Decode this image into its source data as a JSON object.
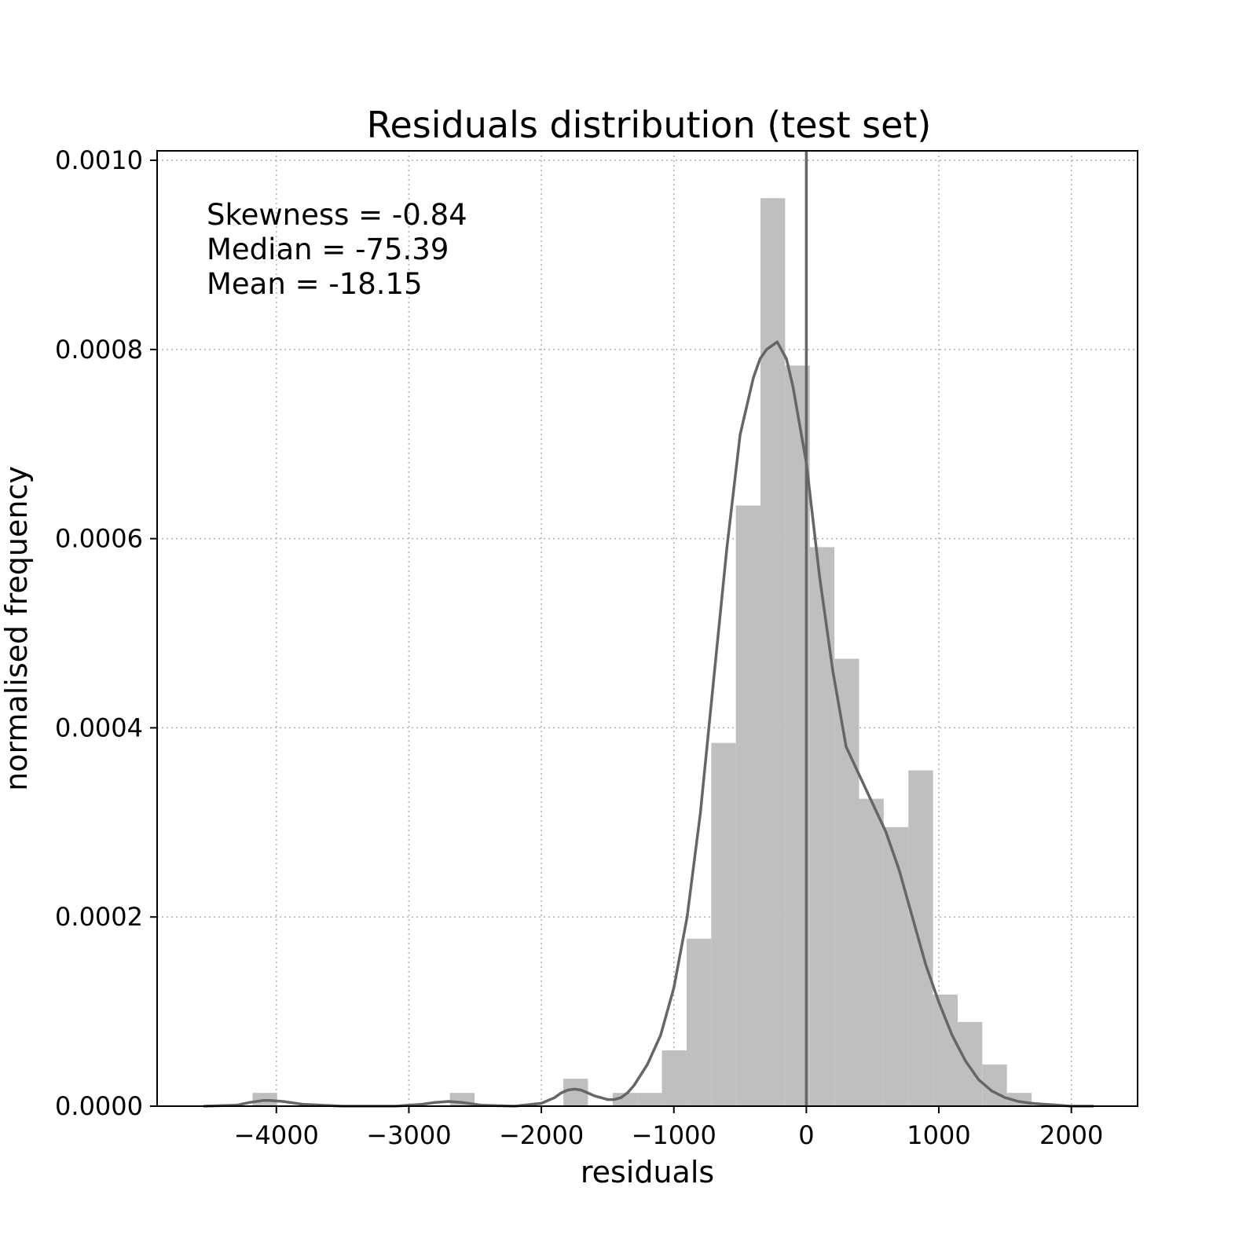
{
  "chart_data": {
    "type": "bar",
    "title": "Residuals distribution (test set)",
    "xlabel": "residuals",
    "ylabel": "normalised frequency",
    "xlim": [
      -4900,
      2500
    ],
    "ylim": [
      0,
      0.00101
    ],
    "xticks": [
      -4000,
      -3000,
      -2000,
      -1000,
      0,
      1000,
      2000
    ],
    "xtick_labels": [
      "−4000",
      "−3000",
      "−2000",
      "−1000",
      "0",
      "1000",
      "2000"
    ],
    "yticks": [
      0,
      0.0002,
      0.0004,
      0.0006,
      0.0008,
      0.001
    ],
    "ytick_labels": [
      "0.0000",
      "0.0002",
      "0.0004",
      "0.0006",
      "0.0008",
      "0.0010"
    ],
    "grid": true,
    "bar_color": "#bfbfbf",
    "line_color": "#666666",
    "histogram": {
      "bin_width": 186,
      "bins": [
        {
          "x0": -4180,
          "value": 1.4e-05
        },
        {
          "x0": -3250,
          "value": 0.0
        },
        {
          "x0": -2690,
          "value": 1.4e-05
        },
        {
          "x0": -1834,
          "value": 2.9e-05
        },
        {
          "x0": -1462,
          "value": 1.4e-05
        },
        {
          "x0": -1276,
          "value": 1.4e-05
        },
        {
          "x0": -1090,
          "value": 5.9e-05
        },
        {
          "x0": -904,
          "value": 0.000177
        },
        {
          "x0": -718,
          "value": 0.000384
        },
        {
          "x0": -532,
          "value": 0.000635
        },
        {
          "x0": -346,
          "value": 0.00096
        },
        {
          "x0": -160,
          "value": 0.000783
        },
        {
          "x0": 26,
          "value": 0.000591
        },
        {
          "x0": 212,
          "value": 0.000473
        },
        {
          "x0": 398,
          "value": 0.000325
        },
        {
          "x0": 584,
          "value": 0.000295
        },
        {
          "x0": 770,
          "value": 0.000355
        },
        {
          "x0": 956,
          "value": 0.000118
        },
        {
          "x0": 1142,
          "value": 8.9e-05
        },
        {
          "x0": 1328,
          "value": 4.4e-05
        },
        {
          "x0": 1514,
          "value": 1.4e-05
        }
      ]
    },
    "kde": {
      "x": [
        -4550,
        -4300,
        -4200,
        -4100,
        -4050,
        -3950,
        -3800,
        -3500,
        -3100,
        -2900,
        -2800,
        -2700,
        -2600,
        -2450,
        -2200,
        -2000,
        -1900,
        -1850,
        -1800,
        -1750,
        -1700,
        -1650,
        -1600,
        -1500,
        -1450,
        -1400,
        -1350,
        -1300,
        -1200,
        -1100,
        -1000,
        -900,
        -800,
        -700,
        -600,
        -500,
        -400,
        -350,
        -300,
        -250,
        -220,
        -200,
        -150,
        -100,
        -50,
        0,
        100,
        200,
        300,
        400,
        500,
        600,
        700,
        800,
        900,
        1000,
        1100,
        1200,
        1300,
        1400,
        1500,
        1600,
        1700,
        1800,
        1900,
        2000,
        2100,
        2170
      ],
      "y": [
        0.0,
        1e-06,
        4e-06,
        6e-06,
        6e-06,
        5e-06,
        2e-06,
        0.0,
        0.0,
        2e-06,
        4e-06,
        5e-06,
        4e-06,
        1e-06,
        0.0,
        3e-06,
        9e-06,
        1.4e-05,
        1.7e-05,
        1.8e-05,
        1.7e-05,
        1.4e-05,
        1.1e-05,
        7e-06,
        7e-06,
        9e-06,
        1.4e-05,
        2.2e-05,
        4.4e-05,
        7.5e-05,
        0.000125,
        0.0002,
        0.00031,
        0.00045,
        0.00059,
        0.00071,
        0.00077,
        0.00079,
        0.0008,
        0.000805,
        0.000808,
        0.000803,
        0.00079,
        0.00076,
        0.00072,
        0.00068,
        0.00056,
        0.00046,
        0.00038,
        0.00035,
        0.00032,
        0.00029,
        0.00025,
        0.0002,
        0.00015,
        0.00011,
        7.5e-05,
        4.8e-05,
        2.8e-05,
        1.6e-05,
        9e-06,
        5e-06,
        3e-06,
        2e-06,
        1e-06,
        0.0,
        0.0,
        0.0
      ]
    },
    "vline_x": 0,
    "annotations": [
      "Skewness = -0.84",
      "Median = -75.39",
      "Mean = -18.15"
    ]
  }
}
